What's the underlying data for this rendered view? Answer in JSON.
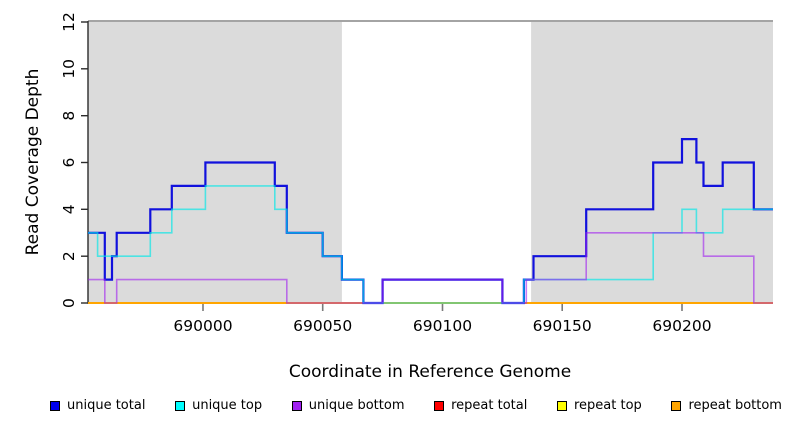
{
  "chart_data": {
    "type": "line",
    "subtype": "step-coverage-plot",
    "title": "",
    "xlabel": "Coordinate in Reference Genome",
    "ylabel": "Read Coverage Depth",
    "xlim": [
      689952,
      690238
    ],
    "ylim": [
      0,
      12
    ],
    "x_ticks": [
      690000,
      690050,
      690100,
      690150,
      690200
    ],
    "y_ticks": [
      0,
      2,
      4,
      6,
      8,
      10,
      12
    ],
    "grid": false,
    "legend_position": "bottom",
    "colors": {
      "background": "#ffffff",
      "shaded_region": "#dbdbdb",
      "plot_border": "#6e6e6e",
      "axis": "#2b2b2b"
    },
    "shaded_regions": {
      "color": "#dbdbdb",
      "ranges": [
        [
          689952,
          690058
        ],
        [
          690137,
          690238
        ]
      ]
    },
    "series": [
      {
        "name": "repeat total",
        "color": "#ff0000",
        "width": 1.4,
        "opacity": 1,
        "x": [
          689952,
          690238
        ],
        "v": [
          0
        ]
      },
      {
        "name": "repeat top",
        "color": "#ffff00",
        "width": 1.4,
        "opacity": 1,
        "x": [
          689952,
          690238
        ],
        "v": [
          0
        ]
      },
      {
        "name": "repeat bottom",
        "color": "#ffa500",
        "width": 2.0,
        "opacity": 1,
        "x": [
          689952,
          690238
        ],
        "v": [
          0
        ]
      },
      {
        "name": "unique total",
        "color": "#1111dd",
        "width": 2.2,
        "opacity": 1,
        "x": [
          689952,
          689959,
          689962,
          689964,
          689978,
          689987,
          690001,
          690030,
          690035,
          690050,
          690058,
          690067,
          690075,
          690125,
          690134,
          690138,
          690160,
          690188,
          690200,
          690206,
          690209,
          690217,
          690230,
          690238
        ],
        "v": [
          3,
          1,
          2,
          3,
          4,
          5,
          6,
          5,
          3,
          2,
          1,
          0,
          1,
          0,
          1,
          2,
          4,
          6,
          7,
          6,
          5,
          6,
          4
        ]
      },
      {
        "name": "unique top",
        "color": "#00e8e8",
        "width": 1.6,
        "opacity": 0.65,
        "x": [
          689952,
          689956,
          689978,
          689987,
          690001,
          690030,
          690035,
          690050,
          690058,
          690067,
          690134,
          690188,
          690200,
          690206,
          690217,
          690238
        ],
        "v": [
          3,
          2,
          3,
          4,
          5,
          4,
          3,
          2,
          1,
          0,
          1,
          3,
          4,
          3,
          4
        ]
      },
      {
        "name": "unique bottom",
        "color": "#a020f0",
        "width": 1.6,
        "opacity": 0.6,
        "x": [
          689952,
          689959,
          689964,
          690035,
          690075,
          690125,
          690135,
          690160,
          690209,
          690230,
          690238
        ],
        "v": [
          1,
          0,
          1,
          0,
          1,
          0,
          1,
          3,
          2,
          0
        ]
      }
    ],
    "legend": {
      "items": [
        {
          "label": "unique total",
          "color": "#0000ee"
        },
        {
          "label": "unique top",
          "color": "#00ffff"
        },
        {
          "label": "unique bottom",
          "color": "#a020f0"
        },
        {
          "label": "repeat total",
          "color": "#ff0000"
        },
        {
          "label": "repeat top",
          "color": "#ffff00"
        },
        {
          "label": "repeat bottom",
          "color": "#ffa500"
        }
      ]
    }
  }
}
